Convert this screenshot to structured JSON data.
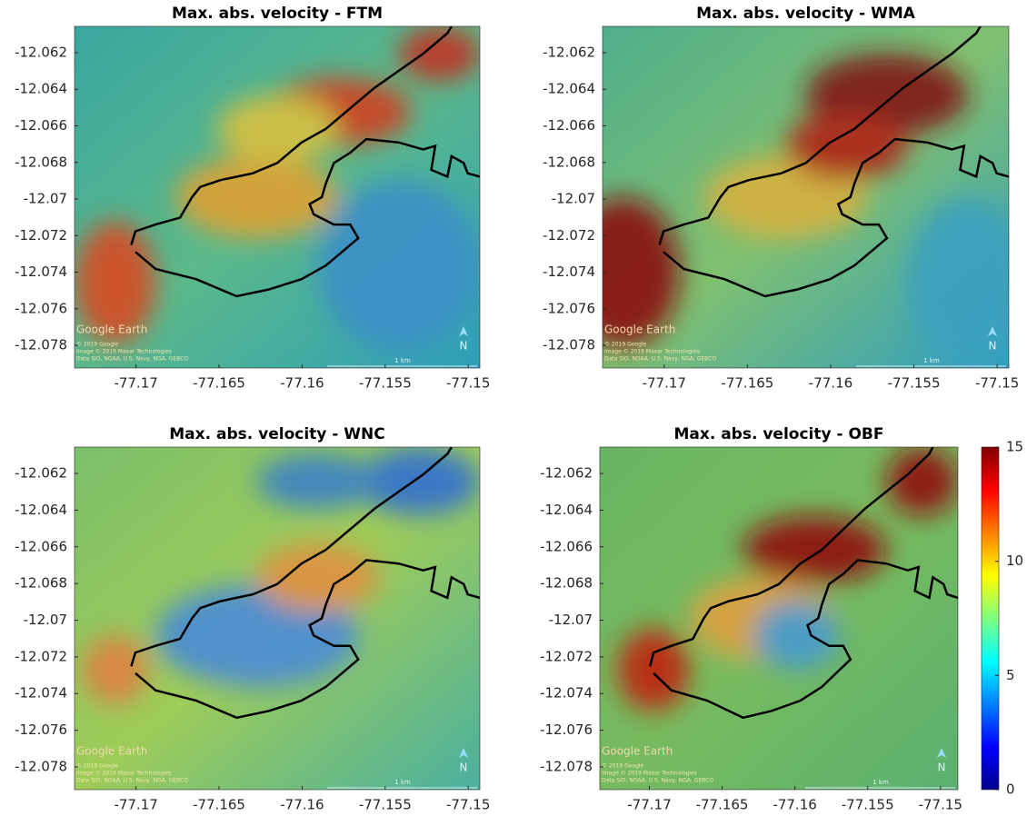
{
  "chart_data": [
    {
      "type": "map",
      "title": "Max. abs. velocity - FTM",
      "xlim": [
        -77.1737,
        -77.1493
      ],
      "ylim": [
        -12.07924,
        -12.06056
      ],
      "xticks": [
        -77.17,
        -77.165,
        -77.16,
        -77.155,
        -77.15
      ],
      "yticks": [
        -12.062,
        -12.064,
        -12.066,
        -12.068,
        -12.07,
        -12.072,
        -12.074,
        -12.076,
        -12.078
      ],
      "logo": "Google Earth",
      "north": "N",
      "scale_label": "1 km",
      "credits": [
        "© 2019 Google",
        "Image © 2019 Maxar Technologies",
        "Data SIO, NOAA, U.S. Navy, NGA, GEBCO"
      ]
    },
    {
      "type": "map",
      "title": "Max. abs. velocity - WMA",
      "xlim": [
        -77.1737,
        -77.1493
      ],
      "ylim": [
        -12.07924,
        -12.06056
      ],
      "xticks": [
        -77.17,
        -77.165,
        -77.16,
        -77.155,
        -77.15
      ],
      "yticks": [
        -12.062,
        -12.064,
        -12.066,
        -12.068,
        -12.07,
        -12.072,
        -12.074,
        -12.076,
        -12.078
      ],
      "logo": "Google Earth",
      "north": "N",
      "scale_label": "1 km",
      "credits": [
        "© 2019 Google",
        "Image © 2019 Maxar Technologies",
        "Data SIO, NOAA, U.S. Navy, NGA, GEBCO"
      ]
    },
    {
      "type": "map",
      "title": "Max. abs. velocity - WNC",
      "xlim": [
        -77.1737,
        -77.1493
      ],
      "ylim": [
        -12.07924,
        -12.06056
      ],
      "xticks": [
        -77.17,
        -77.165,
        -77.16,
        -77.155,
        -77.15
      ],
      "yticks": [
        -12.062,
        -12.064,
        -12.066,
        -12.068,
        -12.07,
        -12.072,
        -12.074,
        -12.076,
        -12.078
      ],
      "logo": "Google Earth",
      "north": "N",
      "scale_label": "1 km",
      "credits": [
        "© 2019 Google",
        "Image © 2019 Maxar Technologies",
        "Data SIO, NOAA, U.S. Navy, NGA, GEBCO"
      ]
    },
    {
      "type": "map",
      "title": "Max. abs. velocity - OBF",
      "xlim": [
        -77.1734,
        -77.1488
      ],
      "ylim": [
        -12.07924,
        -12.06056
      ],
      "xticks": [
        -77.17,
        -77.165,
        -77.16,
        -77.155,
        -77.15
      ],
      "yticks": [
        -12.062,
        -12.064,
        -12.066,
        -12.068,
        -12.07,
        -12.072,
        -12.074,
        -12.076,
        -12.078
      ],
      "logo": "Google Earth",
      "north": "N",
      "scale_label": "1 km",
      "credits": [
        "© 2019 Google",
        "Image © 2019 Maxar Technologies",
        "Data SIO, NOAA, U.S. Navy, NGA, GEBCO"
      ],
      "colorbar": {
        "colormap": "jet",
        "lim": [
          0,
          15
        ],
        "ticks": [
          0,
          5,
          10,
          15
        ]
      }
    }
  ]
}
